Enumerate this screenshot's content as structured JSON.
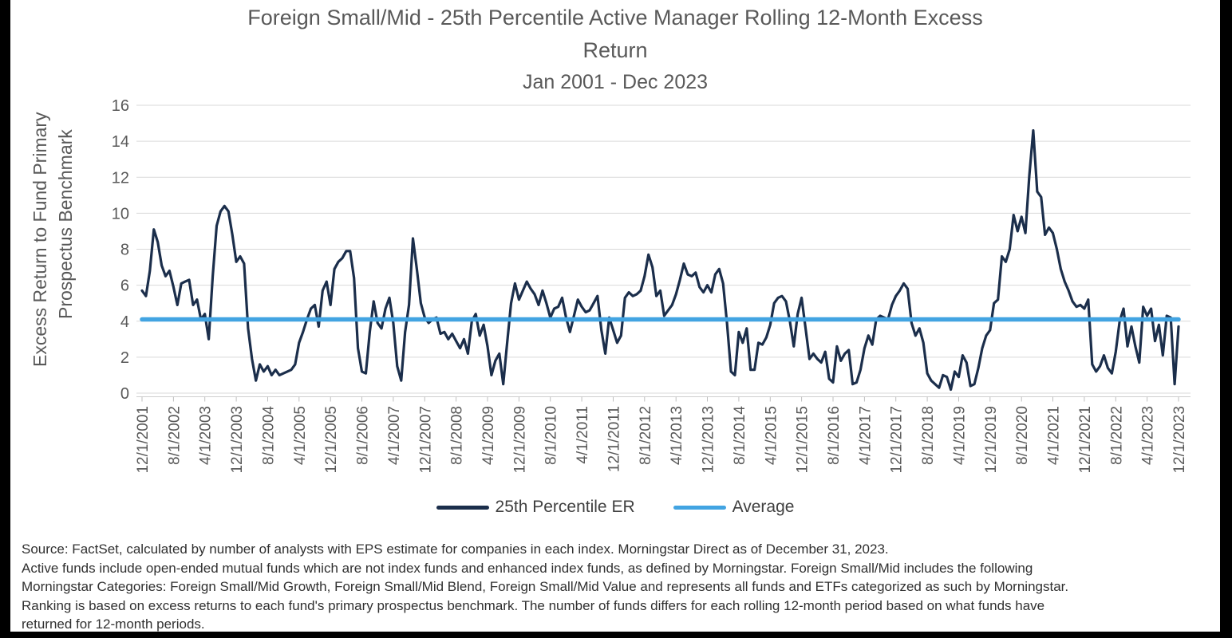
{
  "frame": {
    "color": "#000000",
    "background": "#ffffff"
  },
  "header": {
    "title_lines": [
      "Foreign Small/Mid - 25th Percentile Active Manager Rolling 12-Month Excess",
      "Return"
    ],
    "subtitle": "Jan 2001 - Dec 2023"
  },
  "chart_data": {
    "type": "line",
    "title": "Foreign Small/Mid - 25th Percentile Active Manager Rolling 12-Month Excess Return",
    "subtitle": "Jan 2001 - Dec 2023",
    "ylabel_lines": [
      "Excess Return to Fund Primary",
      "Prospectus Benchmark"
    ],
    "ylim": [
      0,
      16
    ],
    "yticks": [
      0,
      2,
      4,
      6,
      8,
      10,
      12,
      14,
      16
    ],
    "grid": "horizontal",
    "grid_color": "#d9d9d9",
    "axis_text_color": "#595959",
    "legend_position": "bottom",
    "x_start": "12/1/2001",
    "x_end": "12/1/2023",
    "x_frequency": "monthly",
    "x_tick_every": 8,
    "x_tick_labels": [
      "12/1/2001",
      "8/1/2002",
      "4/1/2003",
      "12/1/2003",
      "8/1/2004",
      "4/1/2005",
      "12/1/2005",
      "8/1/2006",
      "4/1/2007",
      "12/1/2007",
      "8/1/2008",
      "4/1/2009",
      "12/1/2009",
      "8/1/2010",
      "4/1/2011",
      "12/1/2011",
      "8/1/2012",
      "4/1/2013",
      "12/1/2013",
      "8/1/2014",
      "4/1/2015",
      "12/1/2015",
      "8/1/2016",
      "4/1/2017",
      "12/1/2017",
      "8/1/2018",
      "4/1/2019",
      "12/1/2019",
      "8/1/2020",
      "4/1/2021",
      "12/1/2021",
      "8/1/2022",
      "4/1/2023",
      "12/1/2023"
    ],
    "series": [
      {
        "name": "25th Percentile ER",
        "type": "line",
        "color": "#1b2e4b",
        "values": [
          5.7,
          5.4,
          6.8,
          9.1,
          8.4,
          7.1,
          6.5,
          6.8,
          5.9,
          4.9,
          6.1,
          6.2,
          6.3,
          4.9,
          5.2,
          4.1,
          4.4,
          3.0,
          6.5,
          9.3,
          10.1,
          10.4,
          10.1,
          8.8,
          7.3,
          7.6,
          7.2,
          3.6,
          1.9,
          0.7,
          1.6,
          1.2,
          1.5,
          1.0,
          1.3,
          1.0,
          1.1,
          1.2,
          1.3,
          1.6,
          2.8,
          3.4,
          4.1,
          4.7,
          4.9,
          3.7,
          5.7,
          6.2,
          4.9,
          6.9,
          7.3,
          7.5,
          7.9,
          7.9,
          6.4,
          2.5,
          1.2,
          1.1,
          3.4,
          5.1,
          3.9,
          3.6,
          4.7,
          5.3,
          3.9,
          1.5,
          0.7,
          3.4,
          4.9,
          8.6,
          6.9,
          5.0,
          4.2,
          3.9,
          4.1,
          4.2,
          3.3,
          3.4,
          3.0,
          3.3,
          2.9,
          2.5,
          3.0,
          2.2,
          4.0,
          4.4,
          3.2,
          3.8,
          2.6,
          1.0,
          1.8,
          2.2,
          0.5,
          2.8,
          5.0,
          6.1,
          5.2,
          5.7,
          6.2,
          5.8,
          5.5,
          4.9,
          5.7,
          5.0,
          4.2,
          4.7,
          4.8,
          5.3,
          4.2,
          3.4,
          4.3,
          5.2,
          4.8,
          4.5,
          4.6,
          5.0,
          5.4,
          3.5,
          2.2,
          4.2,
          3.5,
          2.8,
          3.2,
          5.3,
          5.6,
          5.4,
          5.5,
          5.7,
          6.5,
          7.7,
          7.0,
          5.4,
          5.7,
          4.3,
          4.6,
          4.9,
          5.5,
          6.3,
          7.2,
          6.6,
          6.5,
          6.7,
          5.9,
          5.6,
          6.0,
          5.6,
          6.6,
          6.9,
          6.1,
          3.9,
          1.2,
          1.0,
          3.4,
          2.8,
          3.6,
          1.3,
          1.3,
          2.8,
          2.7,
          3.1,
          3.8,
          5.0,
          5.3,
          5.4,
          5.1,
          4.0,
          2.6,
          4.4,
          5.3,
          3.6,
          1.9,
          2.2,
          1.9,
          1.7,
          2.3,
          0.8,
          0.6,
          2.6,
          1.8,
          2.2,
          2.4,
          0.5,
          0.6,
          1.3,
          2.5,
          3.2,
          2.7,
          4.1,
          4.3,
          4.2,
          4.1,
          4.9,
          5.4,
          5.7,
          6.1,
          5.8,
          3.9,
          3.2,
          3.6,
          2.8,
          1.1,
          0.7,
          0.5,
          0.3,
          1.0,
          0.9,
          0.2,
          1.2,
          0.9,
          2.1,
          1.7,
          0.4,
          0.5,
          1.4,
          2.5,
          3.2,
          3.5,
          5.0,
          5.2,
          7.6,
          7.3,
          8.0,
          9.9,
          9.0,
          9.8,
          8.9,
          12.1,
          14.6,
          11.2,
          10.9,
          8.8,
          9.2,
          8.9,
          8.0,
          6.9,
          6.2,
          5.7,
          5.1,
          4.8,
          4.9,
          4.7,
          5.2,
          1.6,
          1.2,
          1.5,
          2.1,
          1.4,
          1.1,
          2.3,
          4.0,
          4.7,
          2.6,
          3.7,
          2.6,
          1.7,
          4.8,
          4.3,
          4.7,
          2.9,
          3.8,
          2.1,
          4.3,
          4.2,
          0.5,
          3.7
        ]
      },
      {
        "name": "Average",
        "type": "constant-line",
        "color": "#42a4e2",
        "value": 4.1
      }
    ]
  },
  "footnote": {
    "lines": [
      "Source: FactSet, calculated by number of analysts with EPS estimate for companies in each index. Morningstar Direct as of December 31, 2023.",
      "Active funds include open-ended mutual funds which are not index funds and enhanced index funds, as defined by Morningstar. Foreign Small/Mid includes the following",
      "Morningstar Categories: Foreign Small/Mid Growth, Foreign Small/Mid Blend, Foreign Small/Mid Value and represents all funds and ETFs categorized as such by Morningstar.",
      "Ranking is based on excess returns to each fund's primary prospectus benchmark. The number of funds differs for each rolling 12-month period based on what funds have",
      "returned for 12-month periods."
    ]
  }
}
